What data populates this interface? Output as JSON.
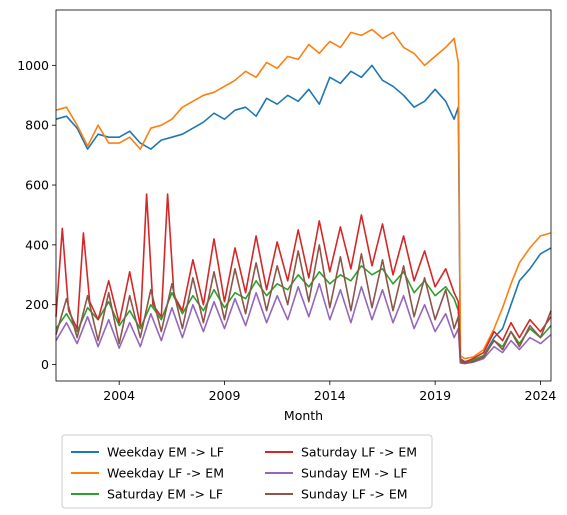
{
  "chart_data": {
    "type": "line",
    "xlabel": "Month",
    "ylabel": "",
    "xlim": [
      2001.0,
      2024.5
    ],
    "ylim": [
      -55,
      1185
    ],
    "x_ticks": [
      {
        "value": 2004,
        "label": "2004"
      },
      {
        "value": 2009,
        "label": "2009"
      },
      {
        "value": 2014,
        "label": "2014"
      },
      {
        "value": 2019,
        "label": "2019"
      },
      {
        "value": 2024,
        "label": "2024"
      }
    ],
    "y_ticks": [
      {
        "value": 0,
        "label": "0"
      },
      {
        "value": 200,
        "label": "200"
      },
      {
        "value": 400,
        "label": "400"
      },
      {
        "value": 600,
        "label": "600"
      },
      {
        "value": 800,
        "label": "800"
      },
      {
        "value": 1000,
        "label": "1000"
      }
    ],
    "grid": false,
    "legend_position": "bottom-outside",
    "legend_columns": 2,
    "series": [
      {
        "name": "Weekday EM -> LF",
        "color": "#1f77b4",
        "x": [
          2001.0,
          2001.5,
          2002.0,
          2002.5,
          2003.0,
          2003.5,
          2004.0,
          2004.5,
          2005.0,
          2005.5,
          2006.0,
          2006.5,
          2007.0,
          2007.5,
          2008.0,
          2008.5,
          2009.0,
          2009.5,
          2010.0,
          2010.5,
          2011.0,
          2011.5,
          2012.0,
          2012.5,
          2013.0,
          2013.5,
          2014.0,
          2014.5,
          2015.0,
          2015.5,
          2016.0,
          2016.5,
          2017.0,
          2017.5,
          2018.0,
          2018.5,
          2019.0,
          2019.5,
          2019.9,
          2020.1,
          2020.2,
          2020.4,
          2020.8,
          2021.3,
          2021.8,
          2022.2,
          2022.6,
          2023.0,
          2023.5,
          2024.0,
          2024.5
        ],
        "values": [
          820,
          830,
          790,
          720,
          770,
          760,
          760,
          780,
          740,
          720,
          750,
          760,
          770,
          790,
          810,
          840,
          820,
          850,
          860,
          830,
          890,
          870,
          900,
          880,
          920,
          870,
          960,
          940,
          980,
          960,
          1000,
          950,
          930,
          900,
          860,
          880,
          920,
          880,
          820,
          860,
          20,
          10,
          15,
          30,
          90,
          120,
          200,
          280,
          320,
          370,
          390
        ]
      },
      {
        "name": "Weekday LF -> EM",
        "color": "#ff7f0e",
        "x": [
          2001.0,
          2001.5,
          2002.0,
          2002.5,
          2003.0,
          2003.5,
          2004.0,
          2004.5,
          2005.0,
          2005.5,
          2006.0,
          2006.5,
          2007.0,
          2007.5,
          2008.0,
          2008.5,
          2009.0,
          2009.5,
          2010.0,
          2010.5,
          2011.0,
          2011.5,
          2012.0,
          2012.5,
          2013.0,
          2013.5,
          2014.0,
          2014.5,
          2015.0,
          2015.5,
          2016.0,
          2016.5,
          2017.0,
          2017.5,
          2018.0,
          2018.5,
          2019.0,
          2019.5,
          2019.9,
          2020.1,
          2020.2,
          2020.4,
          2020.8,
          2021.3,
          2021.8,
          2022.2,
          2022.6,
          2023.0,
          2023.5,
          2024.0,
          2024.5
        ],
        "values": [
          850,
          860,
          800,
          730,
          800,
          740,
          740,
          760,
          720,
          790,
          800,
          820,
          860,
          880,
          900,
          910,
          930,
          950,
          980,
          960,
          1010,
          990,
          1030,
          1020,
          1070,
          1040,
          1080,
          1060,
          1110,
          1100,
          1120,
          1090,
          1110,
          1060,
          1040,
          1000,
          1030,
          1060,
          1090,
          1010,
          30,
          20,
          25,
          50,
          120,
          190,
          270,
          340,
          390,
          430,
          440
        ]
      },
      {
        "name": "Saturday EM -> LF",
        "color": "#2ca02c",
        "x": [
          2001.0,
          2001.5,
          2002.0,
          2002.5,
          2003.0,
          2003.5,
          2004.0,
          2004.5,
          2005.0,
          2005.5,
          2006.0,
          2006.5,
          2007.0,
          2007.5,
          2008.0,
          2008.5,
          2009.0,
          2009.5,
          2010.0,
          2010.5,
          2011.0,
          2011.5,
          2012.0,
          2012.5,
          2013.0,
          2013.5,
          2014.0,
          2014.5,
          2015.0,
          2015.5,
          2016.0,
          2016.5,
          2017.0,
          2017.5,
          2018.0,
          2018.5,
          2019.0,
          2019.5,
          2019.9,
          2020.1,
          2020.2,
          2020.4,
          2020.8,
          2021.3,
          2021.8,
          2022.2,
          2022.6,
          2023.0,
          2023.5,
          2024.0,
          2024.5
        ],
        "values": [
          120,
          170,
          110,
          190,
          150,
          210,
          130,
          180,
          120,
          200,
          150,
          240,
          170,
          230,
          180,
          250,
          190,
          240,
          220,
          280,
          230,
          270,
          250,
          300,
          260,
          310,
          270,
          300,
          280,
          330,
          300,
          320,
          270,
          310,
          240,
          280,
          230,
          260,
          220,
          180,
          10,
          5,
          15,
          30,
          80,
          60,
          110,
          70,
          120,
          90,
          130
        ]
      },
      {
        "name": "Saturday LF -> EM",
        "color": "#d62728",
        "x": [
          2001.0,
          2001.3,
          2001.6,
          2002.0,
          2002.3,
          2002.6,
          2003.0,
          2003.5,
          2004.0,
          2004.5,
          2005.0,
          2005.3,
          2005.6,
          2006.0,
          2006.3,
          2006.6,
          2007.0,
          2007.5,
          2008.0,
          2008.5,
          2009.0,
          2009.5,
          2010.0,
          2010.5,
          2011.0,
          2011.5,
          2012.0,
          2012.5,
          2013.0,
          2013.5,
          2014.0,
          2014.5,
          2015.0,
          2015.5,
          2016.0,
          2016.5,
          2017.0,
          2017.5,
          2018.0,
          2018.5,
          2019.0,
          2019.5,
          2019.9,
          2020.1,
          2020.2,
          2020.4,
          2020.8,
          2021.3,
          2021.8,
          2022.2,
          2022.6,
          2023.0,
          2023.5,
          2024.0,
          2024.5
        ],
        "values": [
          160,
          455,
          180,
          120,
          440,
          210,
          150,
          280,
          140,
          310,
          130,
          570,
          200,
          160,
          570,
          230,
          180,
          350,
          200,
          420,
          210,
          390,
          240,
          430,
          250,
          410,
          280,
          450,
          290,
          480,
          310,
          460,
          320,
          500,
          330,
          470,
          300,
          430,
          280,
          380,
          260,
          320,
          240,
          210,
          15,
          8,
          20,
          40,
          110,
          80,
          140,
          90,
          150,
          110,
          160
        ]
      },
      {
        "name": "Sunday EM -> LF",
        "color": "#9467bd",
        "x": [
          2001.0,
          2001.5,
          2002.0,
          2002.5,
          2003.0,
          2003.5,
          2004.0,
          2004.5,
          2005.0,
          2005.5,
          2006.0,
          2006.5,
          2007.0,
          2007.5,
          2008.0,
          2008.5,
          2009.0,
          2009.5,
          2010.0,
          2010.5,
          2011.0,
          2011.5,
          2012.0,
          2012.5,
          2013.0,
          2013.5,
          2014.0,
          2014.5,
          2015.0,
          2015.5,
          2016.0,
          2016.5,
          2017.0,
          2017.5,
          2018.0,
          2018.5,
          2019.0,
          2019.5,
          2019.9,
          2020.1,
          2020.2,
          2020.4,
          2020.8,
          2021.3,
          2021.8,
          2022.2,
          2022.6,
          2023.0,
          2023.5,
          2024.0,
          2024.5
        ],
        "values": [
          80,
          140,
          70,
          160,
          60,
          150,
          55,
          140,
          60,
          170,
          80,
          190,
          90,
          200,
          110,
          210,
          120,
          220,
          130,
          240,
          140,
          230,
          150,
          260,
          160,
          270,
          150,
          250,
          140,
          260,
          150,
          250,
          140,
          230,
          120,
          200,
          110,
          170,
          90,
          120,
          5,
          3,
          8,
          20,
          60,
          40,
          80,
          50,
          90,
          70,
          100
        ]
      },
      {
        "name": "Sunday LF -> EM",
        "color": "#8c564b",
        "x": [
          2001.0,
          2001.5,
          2002.0,
          2002.5,
          2003.0,
          2003.5,
          2004.0,
          2004.5,
          2005.0,
          2005.5,
          2006.0,
          2006.5,
          2007.0,
          2007.5,
          2008.0,
          2008.5,
          2009.0,
          2009.5,
          2010.0,
          2010.5,
          2011.0,
          2011.5,
          2012.0,
          2012.5,
          2013.0,
          2013.5,
          2014.0,
          2014.5,
          2015.0,
          2015.5,
          2016.0,
          2016.5,
          2017.0,
          2017.5,
          2018.0,
          2018.5,
          2019.0,
          2019.5,
          2019.9,
          2020.1,
          2020.2,
          2020.4,
          2020.8,
          2021.3,
          2021.8,
          2022.2,
          2022.6,
          2023.0,
          2023.5,
          2024.0,
          2024.5
        ],
        "values": [
          100,
          220,
          90,
          230,
          80,
          240,
          70,
          230,
          90,
          250,
          110,
          270,
          120,
          290,
          140,
          310,
          150,
          320,
          170,
          340,
          180,
          330,
          200,
          380,
          210,
          400,
          190,
          360,
          180,
          370,
          190,
          350,
          180,
          330,
          160,
          290,
          150,
          250,
          120,
          160,
          8,
          4,
          10,
          25,
          80,
          50,
          110,
          60,
          130,
          90,
          180
        ]
      }
    ]
  }
}
